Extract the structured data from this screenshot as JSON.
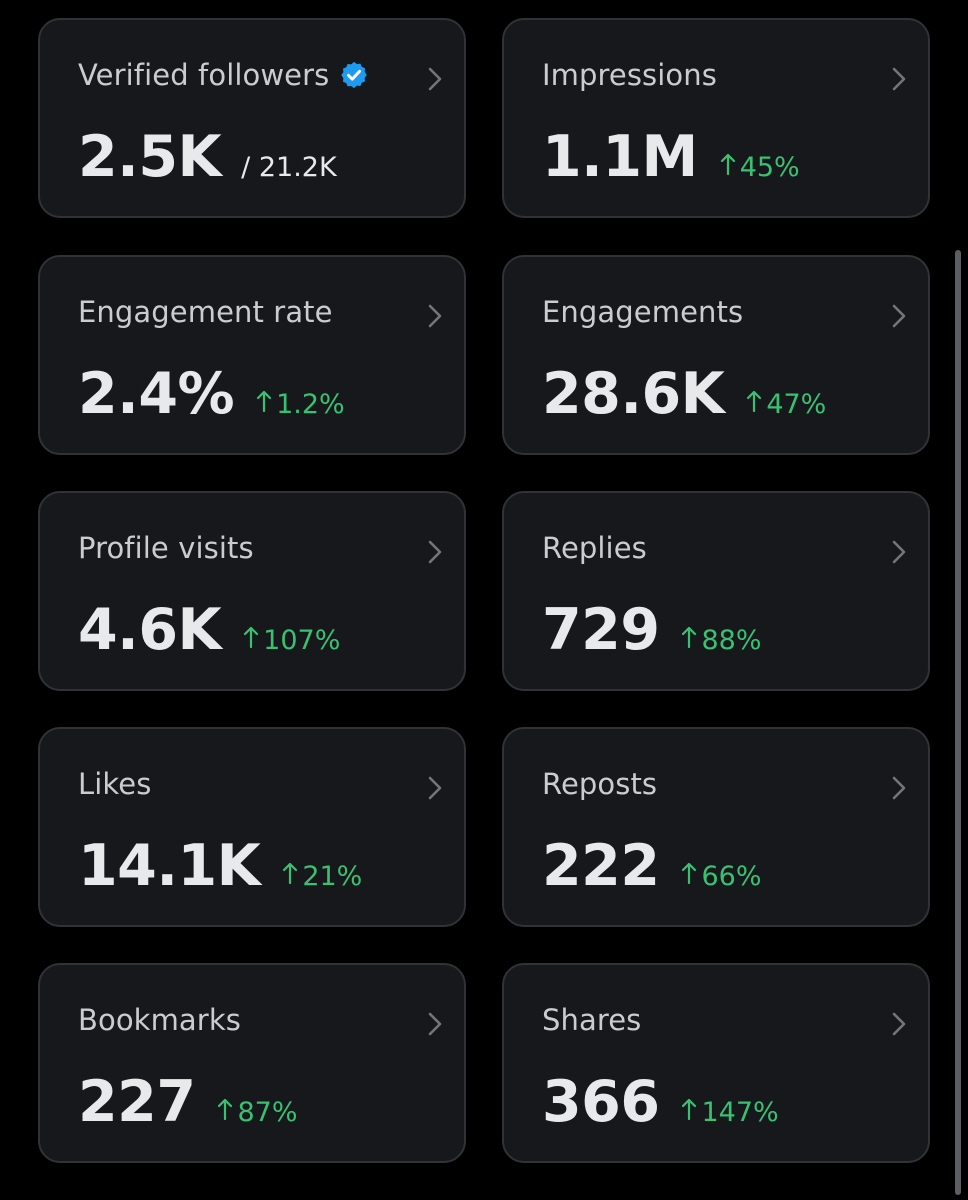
{
  "colors": {
    "background": "#000000",
    "card_background": "#16181c",
    "card_border": "#2f3336",
    "positive_delta": "#39c172",
    "verified_badge": "#1d9bf0"
  },
  "cards": [
    {
      "title": "Verified followers",
      "value": "2.5K",
      "secondary": "/ 21.2K",
      "icon": "verified-badge-icon"
    },
    {
      "title": "Impressions",
      "value": "1.1M",
      "delta": "45%"
    },
    {
      "title": "Engagement rate",
      "value": "2.4%",
      "delta": "1.2%"
    },
    {
      "title": "Engagements",
      "value": "28.6K",
      "delta": "47%"
    },
    {
      "title": "Profile visits",
      "value": "4.6K",
      "delta": "107%"
    },
    {
      "title": "Replies",
      "value": "729",
      "delta": "88%"
    },
    {
      "title": "Likes",
      "value": "14.1K",
      "delta": "21%"
    },
    {
      "title": "Reposts",
      "value": "222",
      "delta": "66%"
    },
    {
      "title": "Bookmarks",
      "value": "227",
      "delta": "87%"
    },
    {
      "title": "Shares",
      "value": "366",
      "delta": "147%"
    }
  ]
}
